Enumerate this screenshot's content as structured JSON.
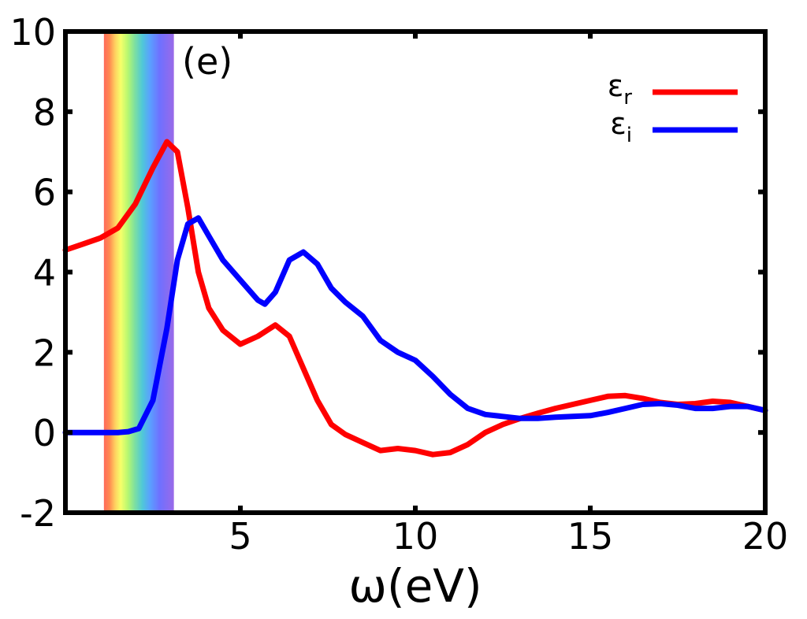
{
  "chart_data": {
    "type": "line",
    "panel_label": "(e)",
    "title": "",
    "xlabel": "ω(eV)",
    "ylabel": "",
    "xlim": [
      0,
      20
    ],
    "ylim": [
      -2,
      10
    ],
    "xticks": [
      5,
      10,
      15,
      20
    ],
    "xtick_labels": [
      "5",
      "10",
      "15",
      "20"
    ],
    "yticks": [
      -2,
      0,
      2,
      4,
      6,
      8,
      10
    ],
    "ytick_labels": [
      "-2",
      "0",
      "2",
      "4",
      "6",
      "8",
      "10"
    ],
    "grid": false,
    "legend_position": "top-right",
    "visible_region_band": {
      "x_range": [
        1.1,
        3.1
      ]
    },
    "series": [
      {
        "name": "εr",
        "name_base": "ε",
        "name_sub": "r",
        "color": "#ff0000",
        "x": [
          0,
          0.5,
          1.0,
          1.5,
          2.0,
          2.5,
          2.9,
          3.2,
          3.5,
          3.8,
          4.1,
          4.5,
          5.0,
          5.5,
          6.0,
          6.4,
          6.8,
          7.2,
          7.6,
          8.0,
          8.5,
          9.0,
          9.5,
          10.0,
          10.5,
          11.0,
          11.5,
          12.0,
          12.5,
          13.0,
          13.5,
          14.0,
          14.5,
          15.0,
          15.5,
          16.0,
          16.5,
          17.0,
          17.5,
          18.0,
          18.5,
          19.0,
          19.5,
          20.0
        ],
        "y": [
          4.55,
          4.7,
          4.85,
          5.1,
          5.7,
          6.6,
          7.25,
          7.0,
          5.6,
          4.0,
          3.1,
          2.55,
          2.2,
          2.4,
          2.68,
          2.4,
          1.6,
          0.8,
          0.2,
          -0.05,
          -0.25,
          -0.45,
          -0.4,
          -0.45,
          -0.55,
          -0.5,
          -0.3,
          0.0,
          0.2,
          0.35,
          0.48,
          0.6,
          0.7,
          0.8,
          0.9,
          0.92,
          0.85,
          0.75,
          0.7,
          0.72,
          0.78,
          0.75,
          0.65,
          0.55
        ]
      },
      {
        "name": "εi",
        "name_base": "ε",
        "name_sub": "i",
        "color": "#0000ff",
        "x": [
          0,
          0.5,
          1.0,
          1.5,
          1.8,
          2.1,
          2.5,
          2.9,
          3.2,
          3.5,
          3.8,
          4.1,
          4.5,
          5.0,
          5.5,
          5.7,
          6.0,
          6.4,
          6.8,
          7.2,
          7.6,
          8.0,
          8.5,
          9.0,
          9.5,
          10.0,
          10.5,
          11.0,
          11.5,
          12.0,
          12.5,
          13.0,
          13.5,
          14.0,
          14.5,
          15.0,
          15.5,
          16.0,
          16.5,
          17.0,
          17.5,
          18.0,
          18.5,
          19.0,
          19.5,
          20.0
        ],
        "y": [
          0.0,
          0.0,
          0.0,
          0.0,
          0.02,
          0.1,
          0.8,
          2.6,
          4.3,
          5.2,
          5.35,
          4.9,
          4.3,
          3.8,
          3.3,
          3.2,
          3.5,
          4.3,
          4.5,
          4.2,
          3.6,
          3.25,
          2.9,
          2.3,
          2.0,
          1.8,
          1.4,
          0.95,
          0.6,
          0.45,
          0.4,
          0.35,
          0.35,
          0.38,
          0.4,
          0.42,
          0.5,
          0.6,
          0.7,
          0.72,
          0.68,
          0.6,
          0.6,
          0.65,
          0.65,
          0.55
        ]
      }
    ]
  }
}
